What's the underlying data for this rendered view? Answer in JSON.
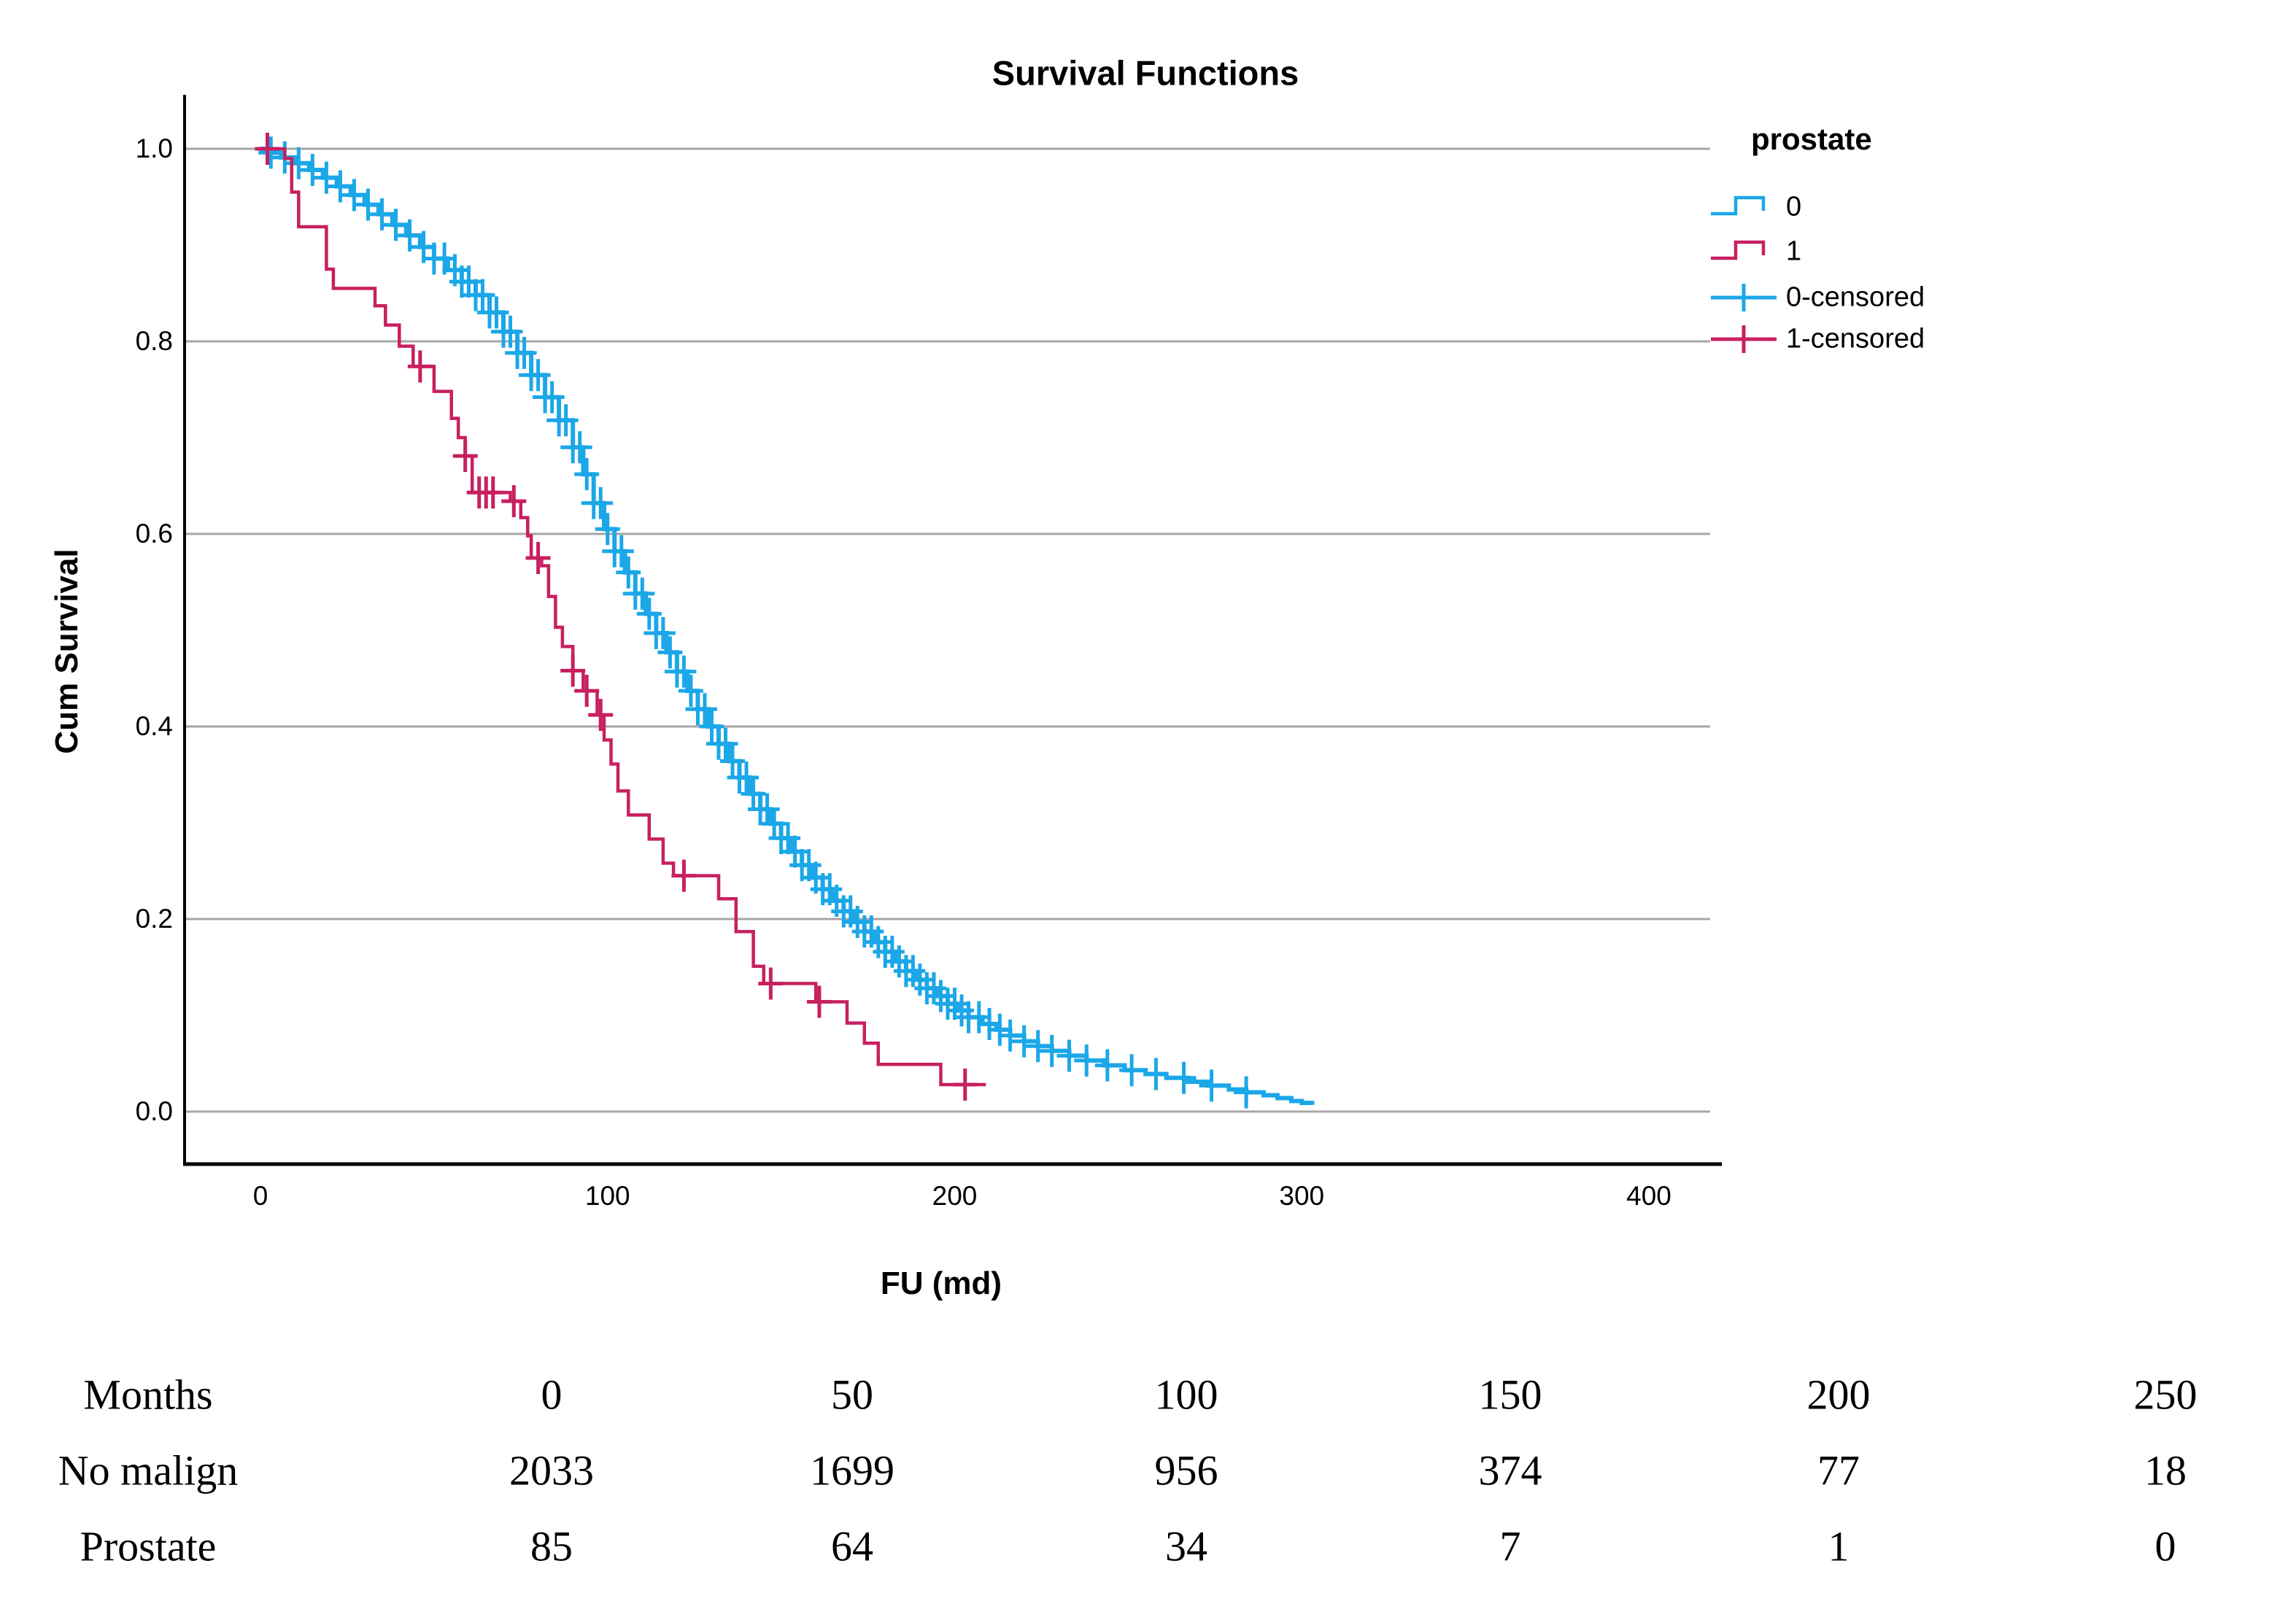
{
  "chart": {
    "title": "Survival Functions",
    "x_axis": {
      "label": "FU (md)",
      "ticks": [
        "0",
        "100",
        "200",
        "300",
        "400"
      ]
    },
    "y_axis": {
      "label": "Cum Survival",
      "ticks": [
        "1.0",
        "0.8",
        "0.6",
        "0.4",
        "0.2",
        "0.0"
      ]
    },
    "legend": {
      "title": "prostate",
      "items": [
        {
          "label": "0",
          "type": "line",
          "color": "#1BA7E8"
        },
        {
          "label": "1",
          "type": "line",
          "color": "#C72060"
        },
        {
          "label": "0-censored",
          "type": "cross",
          "color": "#1BA7E8"
        },
        {
          "label": "1-censored",
          "type": "cross",
          "color": "#C72060"
        }
      ]
    },
    "colors": {
      "grid": "#A6A6A6",
      "axis": "#000000",
      "background": "#FFFFFF"
    }
  },
  "chart_data": {
    "type": "line",
    "subtype": "kaplan-meier-step",
    "title": "Survival Functions",
    "xlabel": "FU (md)",
    "ylabel": "Cum Survival",
    "xlim": [
      0,
      400
    ],
    "ylim": [
      0.0,
      1.0
    ],
    "x_ticks": [
      0,
      100,
      200,
      300,
      400
    ],
    "y_ticks": [
      1.0,
      0.8,
      0.6,
      0.4,
      0.2,
      0.0
    ],
    "grid": "horizontal",
    "legend_position": "right",
    "series": [
      {
        "name": "0",
        "color": "#1BA7E8",
        "points": [
          [
            0,
            1.0
          ],
          [
            3,
            0.996
          ],
          [
            6,
            0.991
          ],
          [
            10,
            0.985
          ],
          [
            14,
            0.978
          ],
          [
            18,
            0.97
          ],
          [
            22,
            0.961
          ],
          [
            26,
            0.952
          ],
          [
            30,
            0.942
          ],
          [
            34,
            0.932
          ],
          [
            38,
            0.921
          ],
          [
            42,
            0.91
          ],
          [
            46,
            0.898
          ],
          [
            50,
            0.886
          ],
          [
            54,
            0.874
          ],
          [
            58,
            0.862
          ],
          [
            62,
            0.848
          ],
          [
            66,
            0.83
          ],
          [
            70,
            0.81
          ],
          [
            74,
            0.788
          ],
          [
            78,
            0.765
          ],
          [
            82,
            0.742
          ],
          [
            86,
            0.718
          ],
          [
            90,
            0.69
          ],
          [
            93,
            0.662
          ],
          [
            96,
            0.632
          ],
          [
            99,
            0.605
          ],
          [
            102,
            0.582
          ],
          [
            105,
            0.56
          ],
          [
            108,
            0.538
          ],
          [
            111,
            0.517
          ],
          [
            114,
            0.497
          ],
          [
            117,
            0.477
          ],
          [
            120,
            0.457
          ],
          [
            123,
            0.437
          ],
          [
            126,
            0.418
          ],
          [
            129,
            0.4
          ],
          [
            132,
            0.382
          ],
          [
            135,
            0.364
          ],
          [
            138,
            0.347
          ],
          [
            141,
            0.33
          ],
          [
            144,
            0.314
          ],
          [
            147,
            0.299
          ],
          [
            150,
            0.284
          ],
          [
            153,
            0.27
          ],
          [
            156,
            0.256
          ],
          [
            159,
            0.243
          ],
          [
            162,
            0.231
          ],
          [
            165,
            0.219
          ],
          [
            168,
            0.208
          ],
          [
            171,
            0.197
          ],
          [
            174,
            0.187
          ],
          [
            177,
            0.176
          ],
          [
            180,
            0.166
          ],
          [
            183,
            0.156
          ],
          [
            186,
            0.146
          ],
          [
            189,
            0.137
          ],
          [
            192,
            0.128
          ],
          [
            195,
            0.12
          ],
          [
            198,
            0.112
          ],
          [
            201,
            0.105
          ],
          [
            204,
            0.098
          ],
          [
            208,
            0.091
          ],
          [
            212,
            0.085
          ],
          [
            216,
            0.079
          ],
          [
            220,
            0.073
          ],
          [
            224,
            0.068
          ],
          [
            228,
            0.063
          ],
          [
            233,
            0.058
          ],
          [
            238,
            0.053
          ],
          [
            243,
            0.048
          ],
          [
            249,
            0.043
          ],
          [
            255,
            0.039
          ],
          [
            261,
            0.035
          ],
          [
            267,
            0.031
          ],
          [
            273,
            0.027
          ],
          [
            279,
            0.023
          ],
          [
            284,
            0.02
          ],
          [
            289,
            0.017
          ],
          [
            293,
            0.014
          ],
          [
            297,
            0.011
          ],
          [
            300,
            0.009
          ],
          [
            303,
            0.007
          ]
        ],
        "censored": [
          3,
          7,
          11,
          15,
          19,
          23,
          27,
          31,
          35,
          39,
          43,
          47,
          50,
          53,
          56,
          58,
          60,
          62,
          64,
          66,
          68,
          70,
          72,
          74,
          76,
          78,
          80,
          82,
          84,
          86,
          88,
          90,
          92,
          94,
          96,
          98,
          100,
          102,
          104,
          106,
          108,
          110,
          112,
          114,
          116,
          118,
          120,
          122,
          124,
          126,
          128,
          130,
          132,
          134,
          136,
          138,
          140,
          142,
          144,
          146,
          148,
          150,
          152,
          154,
          156,
          158,
          160,
          162,
          164,
          166,
          168,
          170,
          172,
          174,
          176,
          178,
          180,
          182,
          184,
          186,
          188,
          190,
          192,
          194,
          196,
          198,
          200,
          202,
          204,
          207,
          210,
          213,
          216,
          220,
          224,
          228,
          233,
          238,
          244,
          251,
          258,
          266,
          274,
          284
        ]
      },
      {
        "name": "1",
        "color": "#C72060",
        "points": [
          [
            0,
            1.0
          ],
          [
            7,
            0.99
          ],
          [
            9,
            0.955
          ],
          [
            11,
            0.919
          ],
          [
            19,
            0.875
          ],
          [
            21,
            0.855
          ],
          [
            33,
            0.837
          ],
          [
            36,
            0.817
          ],
          [
            40,
            0.795
          ],
          [
            44,
            0.774
          ],
          [
            50,
            0.748
          ],
          [
            55,
            0.72
          ],
          [
            57,
            0.7
          ],
          [
            59,
            0.681
          ],
          [
            61,
            0.643
          ],
          [
            72,
            0.634
          ],
          [
            75,
            0.617
          ],
          [
            77,
            0.598
          ],
          [
            78,
            0.575
          ],
          [
            81,
            0.567
          ],
          [
            83,
            0.535
          ],
          [
            85,
            0.503
          ],
          [
            87,
            0.483
          ],
          [
            90,
            0.458
          ],
          [
            93,
            0.437
          ],
          [
            97,
            0.412
          ],
          [
            99,
            0.386
          ],
          [
            101,
            0.361
          ],
          [
            103,
            0.333
          ],
          [
            106,
            0.308
          ],
          [
            112,
            0.283
          ],
          [
            116,
            0.258
          ],
          [
            119,
            0.245
          ],
          [
            132,
            0.221
          ],
          [
            137,
            0.187
          ],
          [
            142,
            0.151
          ],
          [
            145,
            0.133
          ],
          [
            160,
            0.114
          ],
          [
            169,
            0.092
          ],
          [
            174,
            0.071
          ],
          [
            178,
            0.049
          ],
          [
            196,
            0.028
          ],
          [
            209,
            0.028
          ]
        ],
        "censored": [
          2,
          46,
          59,
          63,
          65,
          67,
          73,
          80,
          90,
          94,
          98,
          122,
          147,
          161,
          203
        ]
      }
    ]
  },
  "risk_table": {
    "rows": [
      {
        "label": "Months",
        "values": [
          "0",
          "50",
          "100",
          "150",
          "200",
          "250"
        ]
      },
      {
        "label": "No malign",
        "values": [
          "2033",
          "1699",
          "956",
          "374",
          "77",
          "18"
        ]
      },
      {
        "label": "Prostate",
        "values": [
          "85",
          "64",
          "34",
          "7",
          "1",
          "0"
        ]
      }
    ]
  }
}
